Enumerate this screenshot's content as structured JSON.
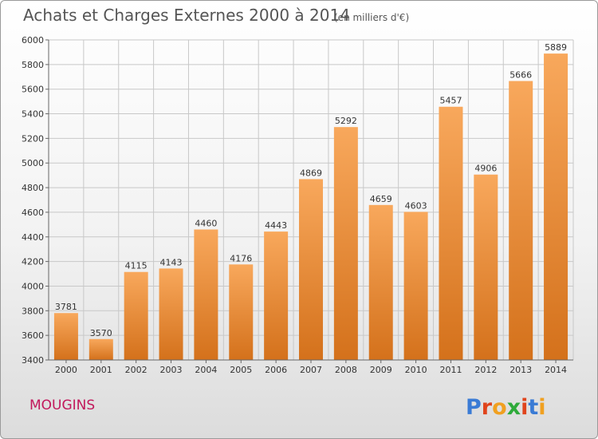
{
  "title": "Achats et Charges Externes 2000 à 2014",
  "title_unit": "(en milliers d'€)",
  "city": "MOUGINS",
  "logo": {
    "text": "Proxiti",
    "letter_colors": [
      "#3a7bd5",
      "#e0441c",
      "#f0a020",
      "#2eaa3a",
      "#e0441c",
      "#3a7bd5",
      "#f0a020"
    ]
  },
  "colors": {
    "bar_light": "#f8a85c",
    "bar_dark": "#d4711b",
    "grid": "#c8c8c8",
    "axis": "#666666"
  },
  "chart_data": {
    "type": "bar",
    "categories": [
      "2000",
      "2001",
      "2002",
      "2003",
      "2004",
      "2005",
      "2006",
      "2007",
      "2008",
      "2009",
      "2010",
      "2011",
      "2012",
      "2013",
      "2014"
    ],
    "values": [
      3781,
      3570,
      4115,
      4143,
      4460,
      4176,
      4443,
      4869,
      5292,
      4659,
      4603,
      5457,
      4906,
      5666,
      5889
    ],
    "yticks": [
      3400,
      3600,
      3800,
      4000,
      4200,
      4400,
      4600,
      4800,
      5000,
      5200,
      5400,
      5600,
      5800,
      6000
    ],
    "ylim": [
      3400,
      6000
    ],
    "grid": true,
    "xlabel": "",
    "ylabel": ""
  }
}
